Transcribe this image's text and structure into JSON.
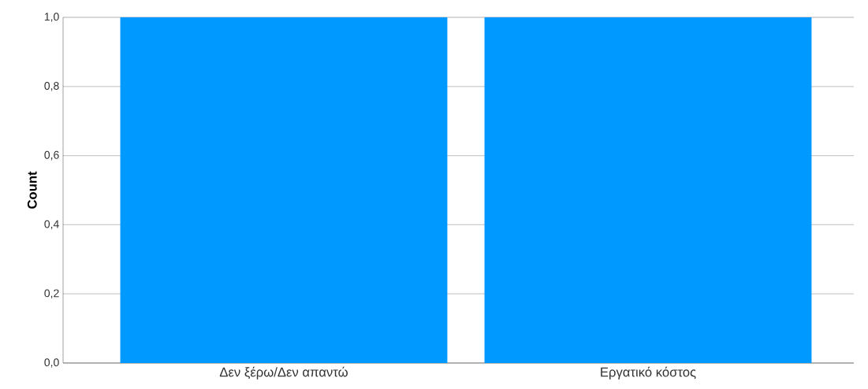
{
  "chart_data": {
    "type": "bar",
    "ylabel": "Count",
    "categories": [
      "Δεν ξέρω/Δεν απαντώ",
      "Εργατικό κόστος"
    ],
    "values": [
      1.0,
      1.0
    ],
    "color": "#0099ff",
    "ylim": [
      0,
      1.0
    ],
    "yticks": [
      {
        "value": 0,
        "label": "0,0"
      },
      {
        "value": 0.2,
        "label": "0,2"
      },
      {
        "value": 0.4,
        "label": "0,4"
      },
      {
        "value": 0.6,
        "label": "0,6"
      },
      {
        "value": 0.8,
        "label": "0,8"
      },
      {
        "value": 1.0,
        "label": "1,0"
      }
    ],
    "grid": "y"
  }
}
